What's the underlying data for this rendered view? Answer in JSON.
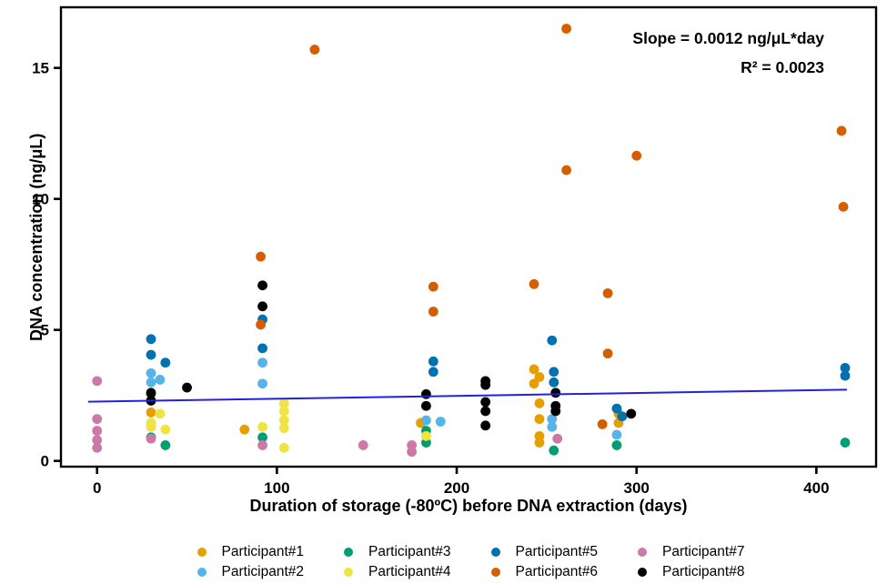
{
  "chart_data": {
    "type": "scatter",
    "title": "",
    "xlabel": "Duration of storage (-80ºC) before DNA extraction (days)",
    "ylabel": "DNA concentration (ng/μL)",
    "x_ticks": [
      0,
      100,
      200,
      300,
      400
    ],
    "y_ticks": [
      0,
      5,
      10,
      15
    ],
    "xlim": [
      -20,
      433
    ],
    "ylim": [
      -0.2,
      17.3
    ],
    "grid": false,
    "legend_position": "bottom",
    "annotations": [
      "Slope = 0.0012 ng/μL*day",
      "R² = 0.0023"
    ],
    "regression_line": {
      "color": "#2222DD",
      "x": [
        -5,
        417
      ],
      "y": [
        2.26,
        2.72
      ]
    },
    "series": [
      {
        "name": "Participant#1",
        "color": "#E69F00",
        "points": [
          [
            30,
            2.55
          ],
          [
            30,
            1.85
          ],
          [
            82,
            1.2
          ],
          [
            180,
            1.45
          ],
          [
            243,
            3.5
          ],
          [
            243,
            2.95
          ],
          [
            246,
            3.2
          ],
          [
            246,
            2.2
          ],
          [
            246,
            1.6
          ],
          [
            246,
            0.95
          ],
          [
            246,
            0.7
          ],
          [
            290,
            1.8
          ],
          [
            290,
            1.45
          ]
        ]
      },
      {
        "name": "Participant#2",
        "color": "#56B4E9",
        "points": [
          [
            30,
            3.35
          ],
          [
            30,
            3.0
          ],
          [
            35,
            3.1
          ],
          [
            92,
            3.75
          ],
          [
            92,
            2.95
          ],
          [
            183,
            1.55
          ],
          [
            191,
            1.5
          ],
          [
            253,
            1.6
          ],
          [
            253,
            1.3
          ],
          [
            289,
            1.0
          ]
        ]
      },
      {
        "name": "Participant#3",
        "color": "#009E73",
        "points": [
          [
            30,
            0.9
          ],
          [
            38,
            0.6
          ],
          [
            92,
            0.9
          ],
          [
            183,
            1.15
          ],
          [
            183,
            0.7
          ],
          [
            254,
            0.4
          ],
          [
            289,
            0.6
          ],
          [
            416,
            0.7
          ]
        ]
      },
      {
        "name": "Participant#4",
        "color": "#F0E442",
        "points": [
          [
            30,
            1.45
          ],
          [
            30,
            1.3
          ],
          [
            35,
            1.8
          ],
          [
            38,
            1.2
          ],
          [
            92,
            1.3
          ],
          [
            104,
            2.2
          ],
          [
            104,
            1.9
          ],
          [
            104,
            1.55
          ],
          [
            104,
            1.25
          ],
          [
            104,
            0.5
          ],
          [
            183,
            0.95
          ]
        ]
      },
      {
        "name": "Participant#5",
        "color": "#0072B2",
        "points": [
          [
            30,
            4.65
          ],
          [
            30,
            4.05
          ],
          [
            38,
            3.75
          ],
          [
            92,
            5.4
          ],
          [
            92,
            4.3
          ],
          [
            187,
            3.8
          ],
          [
            187,
            3.4
          ],
          [
            253,
            4.6
          ],
          [
            254,
            3.4
          ],
          [
            254,
            3.0
          ],
          [
            289,
            2.0
          ],
          [
            292,
            1.7
          ],
          [
            416,
            3.55
          ],
          [
            416,
            3.25
          ]
        ]
      },
      {
        "name": "Participant#6",
        "color": "#D55E00",
        "points": [
          [
            91,
            7.8
          ],
          [
            91,
            5.2
          ],
          [
            121,
            15.7
          ],
          [
            187,
            6.65
          ],
          [
            187,
            5.7
          ],
          [
            243,
            6.75
          ],
          [
            261,
            16.5
          ],
          [
            261,
            11.1
          ],
          [
            281,
            1.4
          ],
          [
            284,
            6.4
          ],
          [
            284,
            4.1
          ],
          [
            300,
            11.65
          ],
          [
            414,
            12.6
          ],
          [
            415,
            9.7
          ]
        ]
      },
      {
        "name": "Participant#7",
        "color": "#CC79A7",
        "points": [
          [
            0,
            3.05
          ],
          [
            0,
            1.6
          ],
          [
            0,
            1.15
          ],
          [
            0,
            0.8
          ],
          [
            0,
            0.5
          ],
          [
            30,
            0.85
          ],
          [
            92,
            0.6
          ],
          [
            148,
            0.6
          ],
          [
            175,
            0.6
          ],
          [
            175,
            0.35
          ],
          [
            256,
            0.85
          ]
        ]
      },
      {
        "name": "Participant#8",
        "color": "#000000",
        "points": [
          [
            30,
            2.6
          ],
          [
            30,
            2.3
          ],
          [
            50,
            2.8
          ],
          [
            92,
            6.7
          ],
          [
            92,
            5.9
          ],
          [
            183,
            2.55
          ],
          [
            183,
            2.1
          ],
          [
            216,
            3.05
          ],
          [
            216,
            2.9
          ],
          [
            216,
            2.25
          ],
          [
            216,
            1.9
          ],
          [
            216,
            1.35
          ],
          [
            255,
            2.6
          ],
          [
            255,
            2.1
          ],
          [
            255,
            1.9
          ],
          [
            297,
            1.8
          ]
        ]
      }
    ]
  }
}
